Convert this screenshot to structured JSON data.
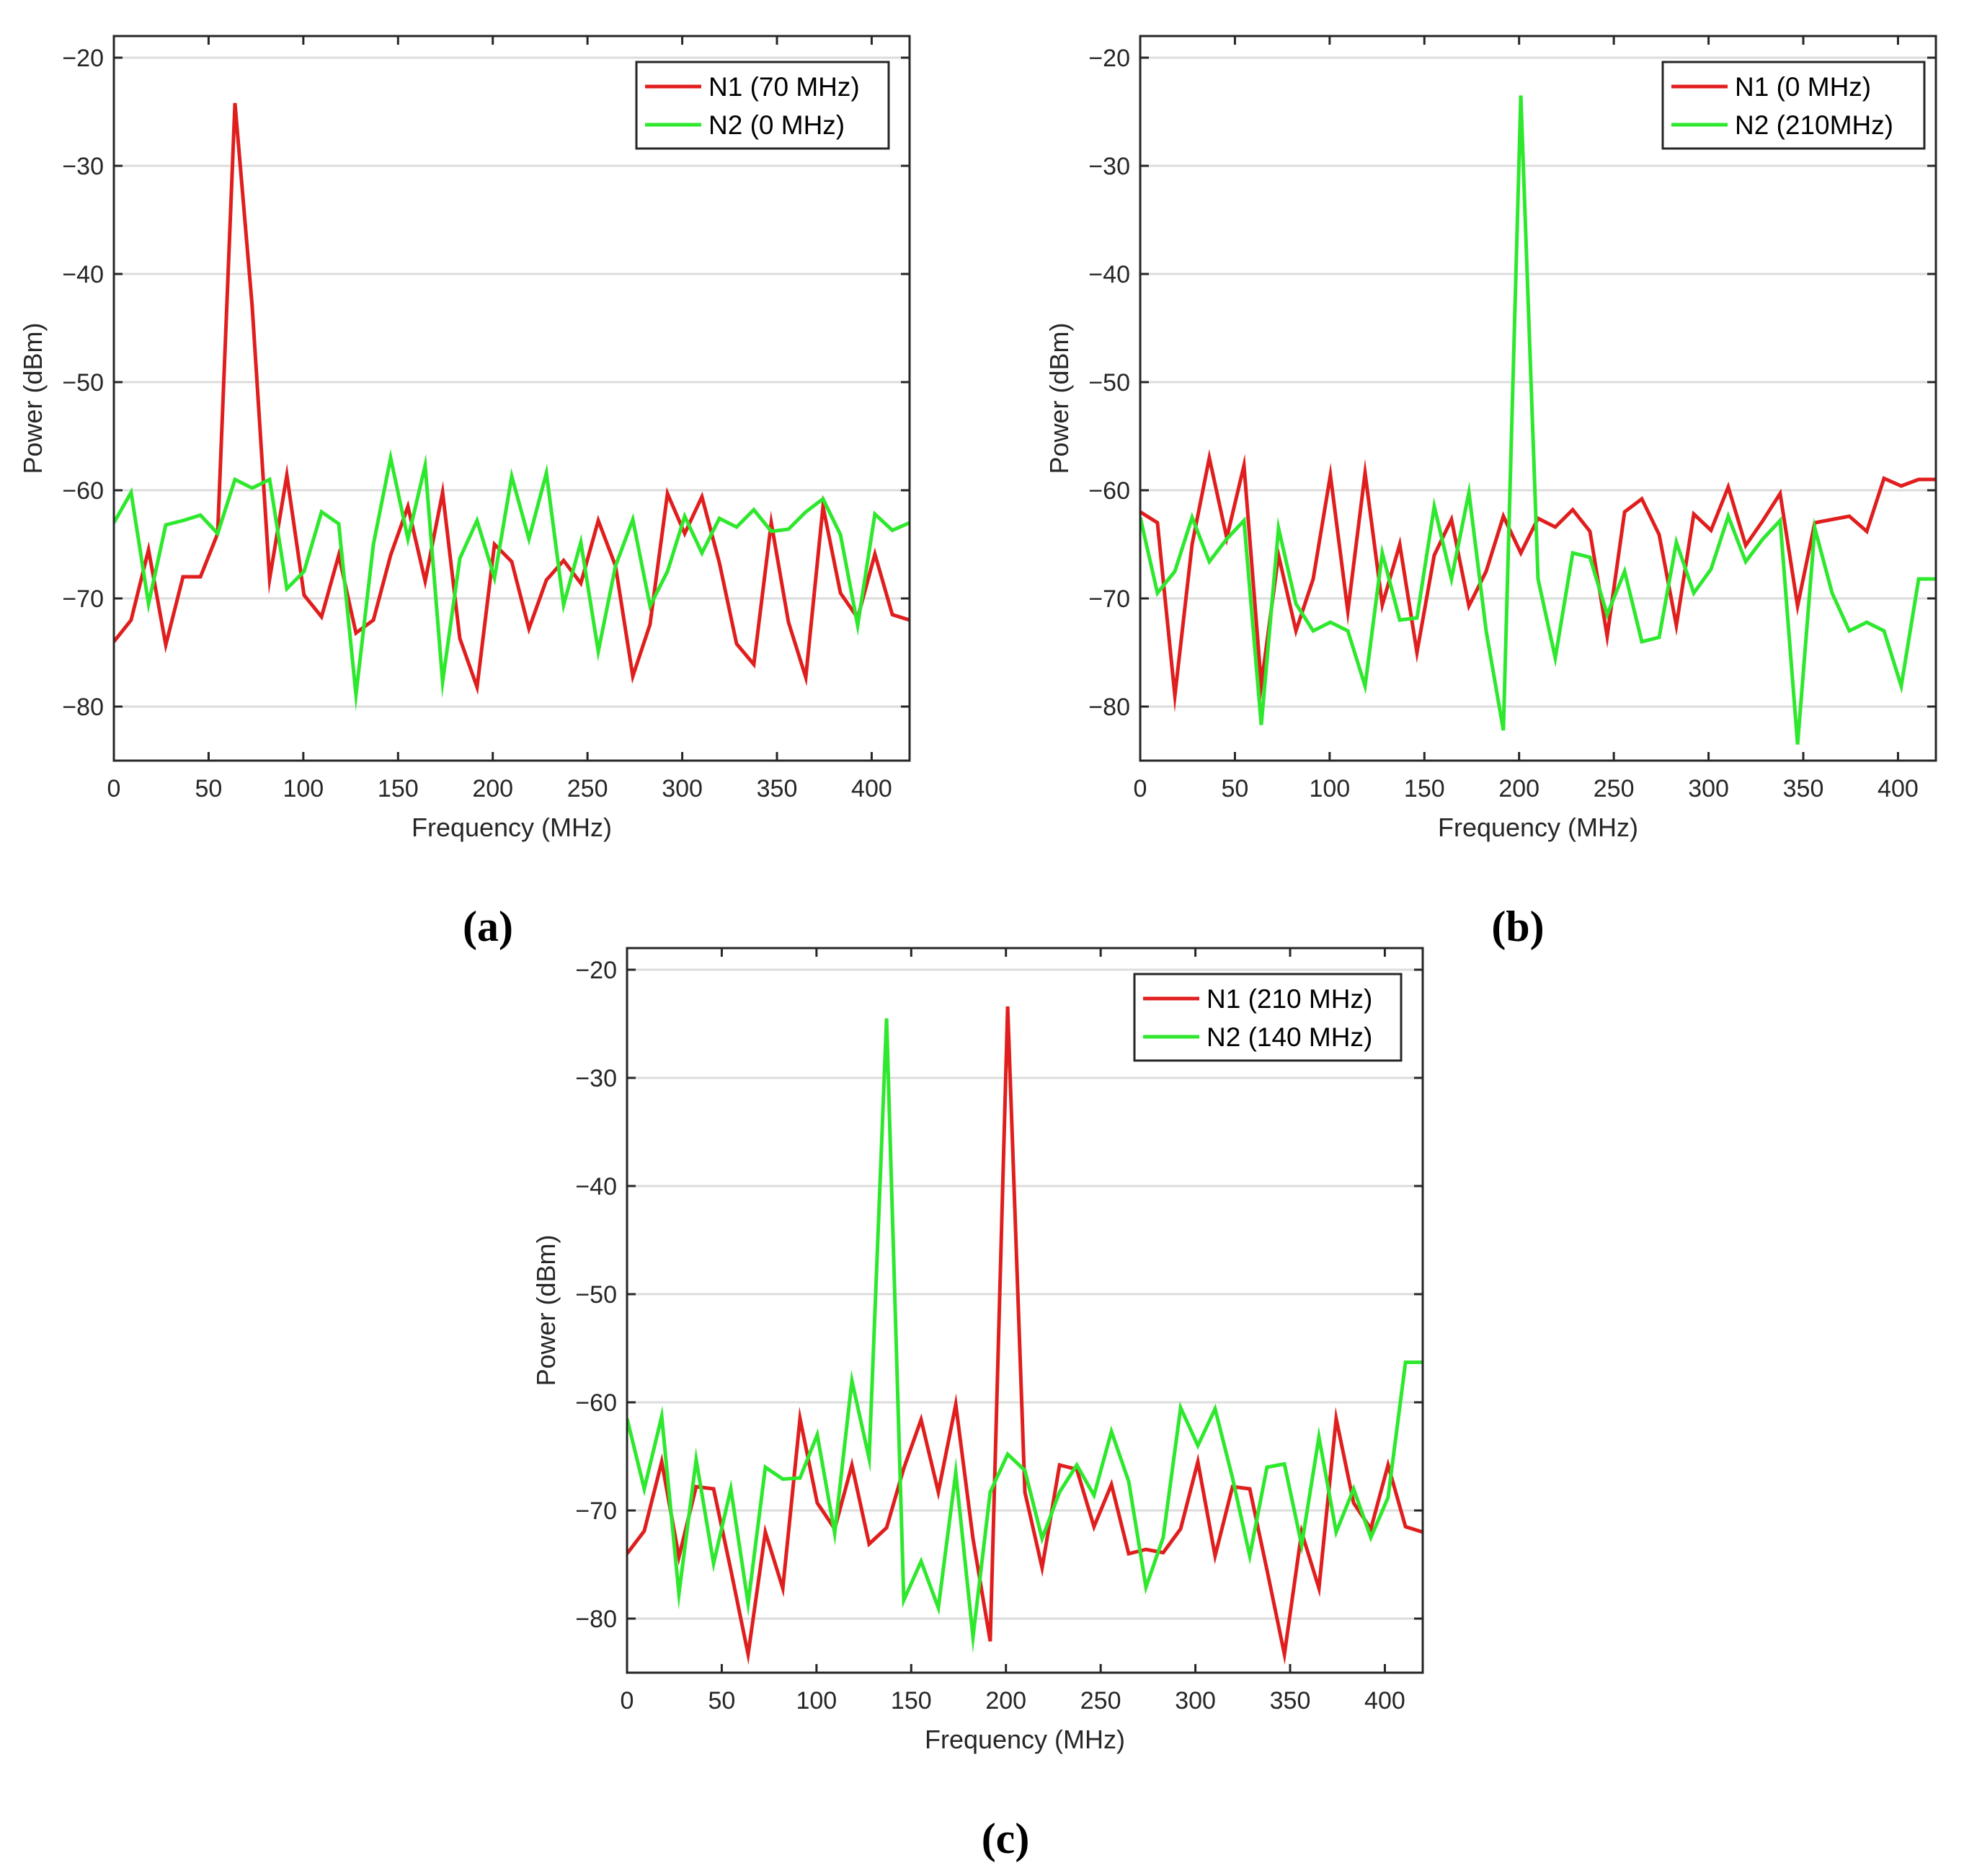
{
  "chart_data": [
    {
      "type": "line",
      "panel": "a",
      "caption": "(a)",
      "xlabel": "Frequency (MHz)",
      "ylabel": "Power (dBm)",
      "xlim": [
        0,
        420
      ],
      "ylim": [
        -85,
        -18
      ],
      "xticks": [
        0,
        50,
        100,
        150,
        200,
        250,
        300,
        350,
        400
      ],
      "yticks": [
        -20,
        -30,
        -40,
        -50,
        -60,
        -70,
        -80
      ],
      "grid": "horizontal",
      "legend_position": "top-right",
      "x": [
        0,
        9.1,
        18.3,
        27.4,
        36.5,
        45.7,
        54.8,
        63.9,
        73,
        82.2,
        91.3,
        100.4,
        109.6,
        118.7,
        127.8,
        137,
        146.1,
        155.2,
        164.3,
        173.5,
        182.6,
        191.7,
        200.9,
        210,
        219.1,
        228.3,
        237.4,
        246.5,
        255.7,
        264.8,
        273.9,
        283,
        292.2,
        301.3,
        310.4,
        319.6,
        328.7,
        337.8,
        347,
        356.1,
        365.2,
        374.3,
        383.5,
        392.6,
        401.7,
        410.9,
        420
      ],
      "series": [
        {
          "name": "N1 (70 MHz)",
          "color": "#e01e1e",
          "values": [
            -74,
            -72,
            -65.5,
            -74.3,
            -68,
            -68,
            -64,
            -24.2,
            -43,
            -68.2,
            -58.6,
            -69.7,
            -71.7,
            -66,
            -73.2,
            -72,
            -66,
            -61.5,
            -68.4,
            -60.2,
            -73.7,
            -78.2,
            -65,
            -66.6,
            -72.8,
            -68.3,
            -66.5,
            -68.6,
            -62.8,
            -67,
            -77.2,
            -72.4,
            -60.3,
            -64,
            -60.6,
            -66.7,
            -74.2,
            -76.1,
            -63,
            -72.2,
            -77.3,
            -61.5,
            -69.5,
            -71.8,
            -65.9,
            -71.5,
            -72
          ]
        },
        {
          "name": "N2 (0 MHz)",
          "color": "#2ee82e",
          "values": [
            -63,
            -60.2,
            -70.5,
            -63.2,
            -62.8,
            -62.3,
            -64,
            -59,
            -59.8,
            -59,
            -69.1,
            -67.5,
            -62,
            -63.1,
            -78.9,
            -65,
            -57,
            -64.5,
            -57.7,
            -77.7,
            -66.3,
            -62.8,
            -68.1,
            -58.7,
            -64.5,
            -58.4,
            -70.6,
            -64.8,
            -74.9,
            -67,
            -62.7,
            -70.7,
            -67.5,
            -62.4,
            -65.8,
            -62.6,
            -63.4,
            -61.8,
            -63.8,
            -63.6,
            -62,
            -60.8,
            -64.1,
            -72.5,
            -62.2,
            -63.7,
            -63
          ]
        }
      ]
    },
    {
      "type": "line",
      "panel": "b",
      "caption": "(b)",
      "xlabel": "Frequency (MHz)",
      "ylabel": "Power (dBm)",
      "xlim": [
        0,
        420
      ],
      "ylim": [
        -85,
        -18
      ],
      "xticks": [
        0,
        50,
        100,
        150,
        200,
        250,
        300,
        350,
        400
      ],
      "yticks": [
        -20,
        -30,
        -40,
        -50,
        -60,
        -70,
        -80
      ],
      "grid": "horizontal",
      "legend_position": "top-right",
      "x": [
        0,
        9.1,
        18.3,
        27.4,
        36.5,
        45.7,
        54.8,
        63.9,
        73,
        82.2,
        91.3,
        100.4,
        109.6,
        118.7,
        127.8,
        137,
        146.1,
        155.2,
        164.3,
        173.5,
        182.6,
        191.7,
        200.9,
        210,
        219.1,
        228.3,
        237.4,
        246.5,
        255.7,
        264.8,
        273.9,
        283,
        292.2,
        301.3,
        310.4,
        319.6,
        328.7,
        337.8,
        347,
        356.1,
        365.2,
        374.3,
        383.5,
        392.6,
        401.7,
        410.9,
        420
      ],
      "series": [
        {
          "name": "N1 (0 MHz)",
          "color": "#e01e1e",
          "values": [
            -62,
            -63,
            -79,
            -65,
            -57,
            -64.4,
            -57.7,
            -78,
            -66,
            -73,
            -68.2,
            -58.6,
            -71.2,
            -58.4,
            -70.6,
            -65,
            -75,
            -66,
            -62.7,
            -70.7,
            -67.5,
            -62.4,
            -65.8,
            -62.6,
            -63.4,
            -61.8,
            -63.8,
            -73.5,
            -62,
            -60.8,
            -64.1,
            -72.5,
            -62.2,
            -63.7,
            -59.7,
            -65.1,
            -62.8,
            -60.3,
            -70.7,
            -63,
            -62.7,
            -62.4,
            -63.8,
            -58.9,
            -59.6,
            -59,
            -59
          ]
        },
        {
          "name": "N2 (210MHz)",
          "color": "#2ee82e",
          "values": [
            -62.5,
            -69.5,
            -67.5,
            -62.5,
            -66.6,
            -64.5,
            -62.8,
            -81.7,
            -63.5,
            -70.5,
            -73,
            -72.2,
            -73,
            -78.1,
            -65.8,
            -72,
            -71.8,
            -61.5,
            -68.2,
            -60.2,
            -73,
            -82.2,
            -23.5,
            -68.2,
            -75.5,
            -65.8,
            -66.2,
            -71.5,
            -67.5,
            -74,
            -73.6,
            -64.8,
            -69.5,
            -67.3,
            -62.4,
            -66.6,
            -64.5,
            -62.8,
            -83.5,
            -63.5,
            -69.5,
            -73,
            -72.2,
            -73,
            -78.1,
            -68.2,
            -68.2
          ]
        }
      ]
    },
    {
      "type": "line",
      "panel": "c",
      "caption": "(c)",
      "xlabel": "Frequency (MHz)",
      "ylabel": "Power (dBm)",
      "xlim": [
        0,
        420
      ],
      "ylim": [
        -85,
        -18
      ],
      "xticks": [
        0,
        50,
        100,
        150,
        200,
        250,
        300,
        350,
        400
      ],
      "yticks": [
        -20,
        -30,
        -40,
        -50,
        -60,
        -70,
        -80
      ],
      "grid": "horizontal",
      "legend_position": "top-right",
      "x": [
        0,
        9.1,
        18.3,
        27.4,
        36.5,
        45.7,
        54.8,
        63.9,
        73,
        82.2,
        91.3,
        100.4,
        109.6,
        118.7,
        127.8,
        137,
        146.1,
        155.2,
        164.3,
        173.5,
        182.6,
        191.7,
        200.9,
        210,
        219.1,
        228.3,
        237.4,
        246.5,
        255.7,
        264.8,
        273.9,
        283,
        292.2,
        301.3,
        310.4,
        319.6,
        328.7,
        337.8,
        347,
        356.1,
        365.2,
        374.3,
        383.5,
        392.6,
        401.7,
        410.9,
        420
      ],
      "series": [
        {
          "name": "N1 (210 MHz)",
          "color": "#e01e1e",
          "values": [
            -74,
            -71.9,
            -65.5,
            -74.3,
            -67.8,
            -68,
            -75.5,
            -83.3,
            -72,
            -77.2,
            -61.5,
            -69.3,
            -71.7,
            -65.8,
            -73.1,
            -71.6,
            -66.1,
            -61.6,
            -68.3,
            -60.2,
            -72.6,
            -82.1,
            -23.4,
            -68.3,
            -75.3,
            -65.8,
            -66.2,
            -71.5,
            -67.6,
            -74,
            -73.6,
            -73.9,
            -71.7,
            -65.5,
            -74.2,
            -67.8,
            -68,
            -75.5,
            -83.3,
            -72,
            -77.2,
            -61.5,
            -69.3,
            -71.7,
            -65.8,
            -71.5,
            -72
          ]
        },
        {
          "name": "N2 (140 MHz)",
          "color": "#2ee82e",
          "values": [
            -61.5,
            -68,
            -61.3,
            -77.7,
            -65.3,
            -74.9,
            -68,
            -78.6,
            -66,
            -67.1,
            -67,
            -63,
            -72.1,
            -58,
            -65.2,
            -24.5,
            -78.3,
            -74.7,
            -79,
            -66.5,
            -81.7,
            -68.3,
            -64.8,
            -66.3,
            -72.6,
            -68.3,
            -65.8,
            -68.6,
            -62.7,
            -67.3,
            -77.1,
            -72.5,
            -60.5,
            -64,
            -60.6,
            -67,
            -74.2,
            -66,
            -65.7,
            -73.2,
            -63.2,
            -72,
            -68,
            -72.5,
            -68.8,
            -56.3,
            -56.3
          ]
        }
      ]
    }
  ]
}
